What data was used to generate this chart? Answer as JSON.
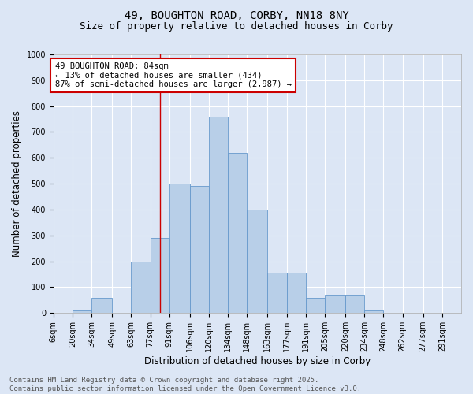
{
  "title_line1": "49, BOUGHTON ROAD, CORBY, NN18 8NY",
  "title_line2": "Size of property relative to detached houses in Corby",
  "xlabel": "Distribution of detached houses by size in Corby",
  "ylabel": "Number of detached properties",
  "categories": [
    "6sqm",
    "20sqm",
    "34sqm",
    "49sqm",
    "63sqm",
    "77sqm",
    "91sqm",
    "106sqm",
    "120sqm",
    "134sqm",
    "148sqm",
    "163sqm",
    "177sqm",
    "191sqm",
    "205sqm",
    "220sqm",
    "234sqm",
    "248sqm",
    "262sqm",
    "277sqm",
    "291sqm"
  ],
  "values": [
    0,
    10,
    60,
    0,
    200,
    290,
    500,
    490,
    760,
    620,
    400,
    155,
    155,
    60,
    70,
    70,
    10,
    0,
    0,
    0,
    0
  ],
  "bar_color": "#b8cfe8",
  "bar_edge_color": "#6699cc",
  "background_color": "#dce6f5",
  "grid_color": "#ffffff",
  "annotation_box_text": "49 BOUGHTON ROAD: 84sqm\n← 13% of detached houses are smaller (434)\n87% of semi-detached houses are larger (2,987) →",
  "annotation_box_color": "#ffffff",
  "annotation_box_edge_color": "#cc0000",
  "vline_color": "#cc0000",
  "footer_text": "Contains HM Land Registry data © Crown copyright and database right 2025.\nContains public sector information licensed under the Open Government Licence v3.0.",
  "ylim": [
    0,
    1000
  ],
  "yticks": [
    0,
    100,
    200,
    300,
    400,
    500,
    600,
    700,
    800,
    900,
    1000
  ],
  "title_fontsize": 10,
  "subtitle_fontsize": 9,
  "axis_label_fontsize": 8.5,
  "tick_fontsize": 7,
  "footer_fontsize": 6.5,
  "annotation_fontsize": 7.5
}
